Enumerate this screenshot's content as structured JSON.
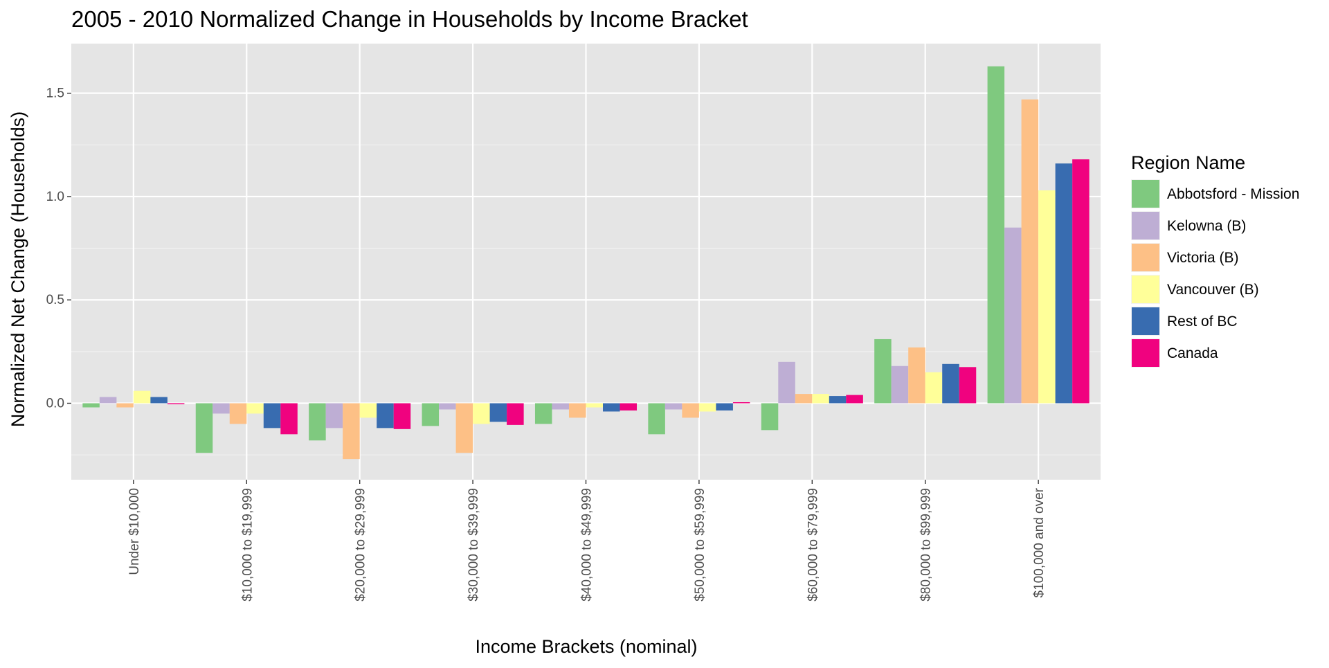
{
  "chart_data": {
    "type": "bar",
    "title": "2005 - 2010 Normalized Change in Households by Income Bracket",
    "xlabel": "Income Brackets (nominal)",
    "ylabel": "Normalized Net Change (Households)",
    "categories": [
      "Under $10,000",
      "$10,000 to $19,999",
      "$20,000 to $29,999",
      "$30,000 to $39,999",
      "$40,000 to $49,999",
      "$50,000 to $59,999",
      "$60,000 to $79,999",
      "$80,000 to $99,999",
      "$100,000 and over"
    ],
    "y_ticks": [
      0.0,
      0.5,
      1.0,
      1.5
    ],
    "y_tick_labels": [
      "0.0",
      "0.5",
      "1.0",
      "1.5"
    ],
    "ylim": [
      -0.37,
      1.74
    ],
    "grid": true,
    "legend": {
      "title": "Region Name",
      "position": "right"
    },
    "series": [
      {
        "name": "Abbotsford - Mission",
        "color": "#7fc97f",
        "values": [
          -0.02,
          -0.24,
          -0.18,
          -0.11,
          -0.1,
          -0.15,
          -0.13,
          0.31,
          1.63
        ]
      },
      {
        "name": "Kelowna (B)",
        "color": "#beaed4",
        "values": [
          0.03,
          -0.05,
          -0.12,
          -0.03,
          -0.03,
          -0.03,
          0.2,
          0.18,
          0.85
        ]
      },
      {
        "name": "Victoria (B)",
        "color": "#fdc086",
        "values": [
          -0.02,
          -0.1,
          -0.27,
          -0.24,
          -0.07,
          -0.07,
          0.045,
          0.27,
          1.47
        ]
      },
      {
        "name": "Vancouver (B)",
        "color": "#ffff99",
        "values": [
          0.06,
          -0.05,
          -0.07,
          -0.1,
          -0.02,
          -0.04,
          0.045,
          0.15,
          1.03
        ]
      },
      {
        "name": "Rest of BC",
        "color": "#386cb0",
        "values": [
          0.03,
          -0.12,
          -0.12,
          -0.09,
          -0.04,
          -0.035,
          0.035,
          0.19,
          1.16
        ]
      },
      {
        "name": "Canada",
        "color": "#f0027f",
        "values": [
          -0.005,
          -0.15,
          -0.125,
          -0.105,
          -0.035,
          0.005,
          0.04,
          0.175,
          1.18
        ]
      }
    ]
  }
}
